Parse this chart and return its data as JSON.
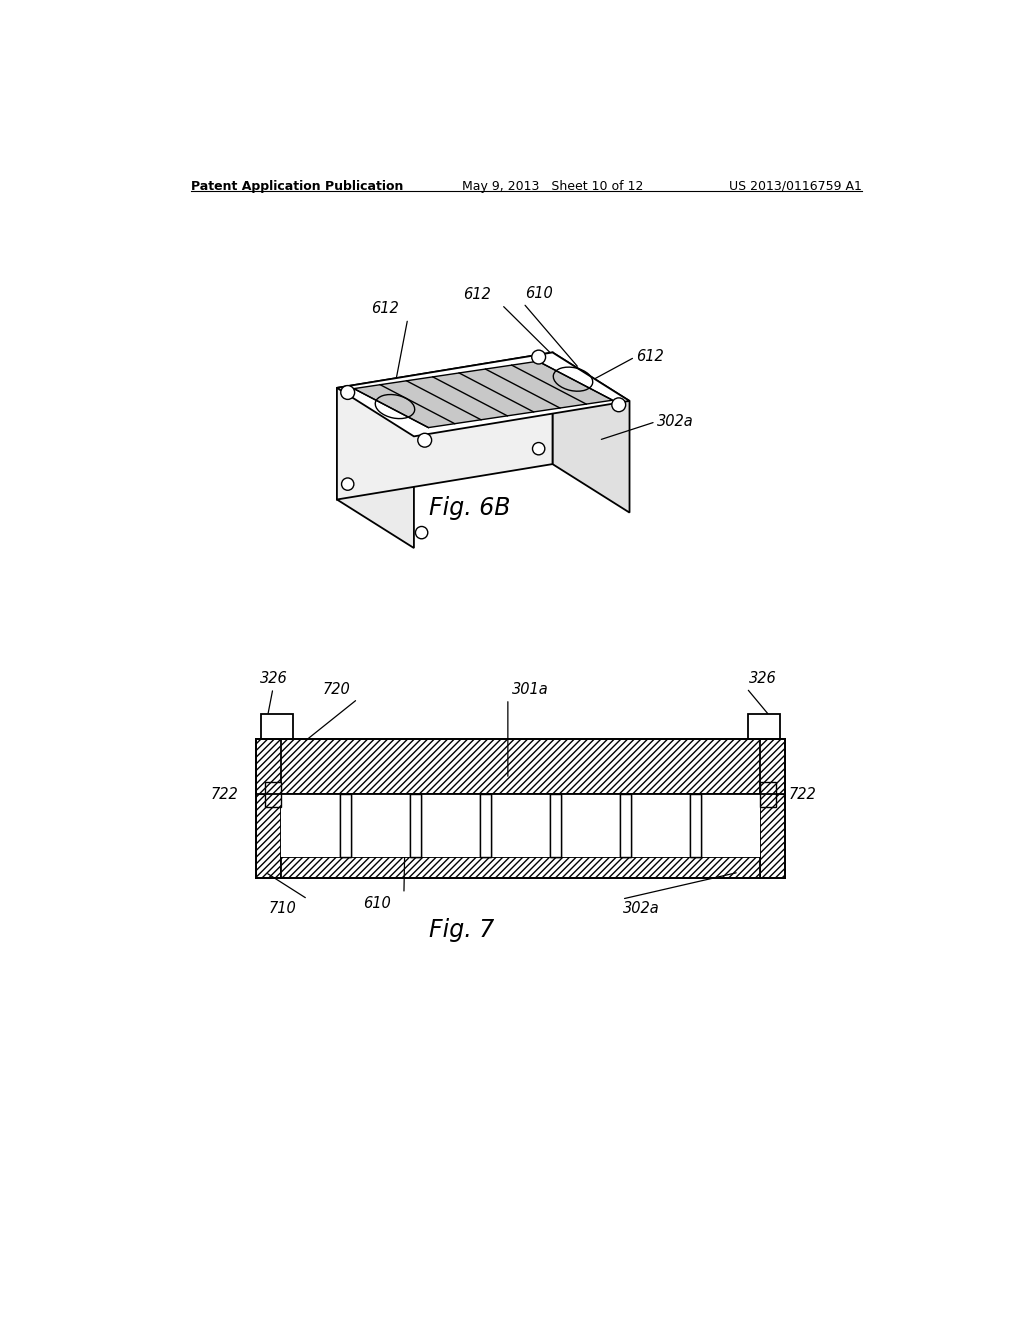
{
  "bg_color": "#ffffff",
  "header_left": "Patent Application Publication",
  "header_mid": "May 9, 2013   Sheet 10 of 12",
  "header_right": "US 2013/0116759 A1",
  "fig6b_label": "Fig. 6B",
  "fig7_label": "Fig. 7",
  "line_color": "#000000"
}
